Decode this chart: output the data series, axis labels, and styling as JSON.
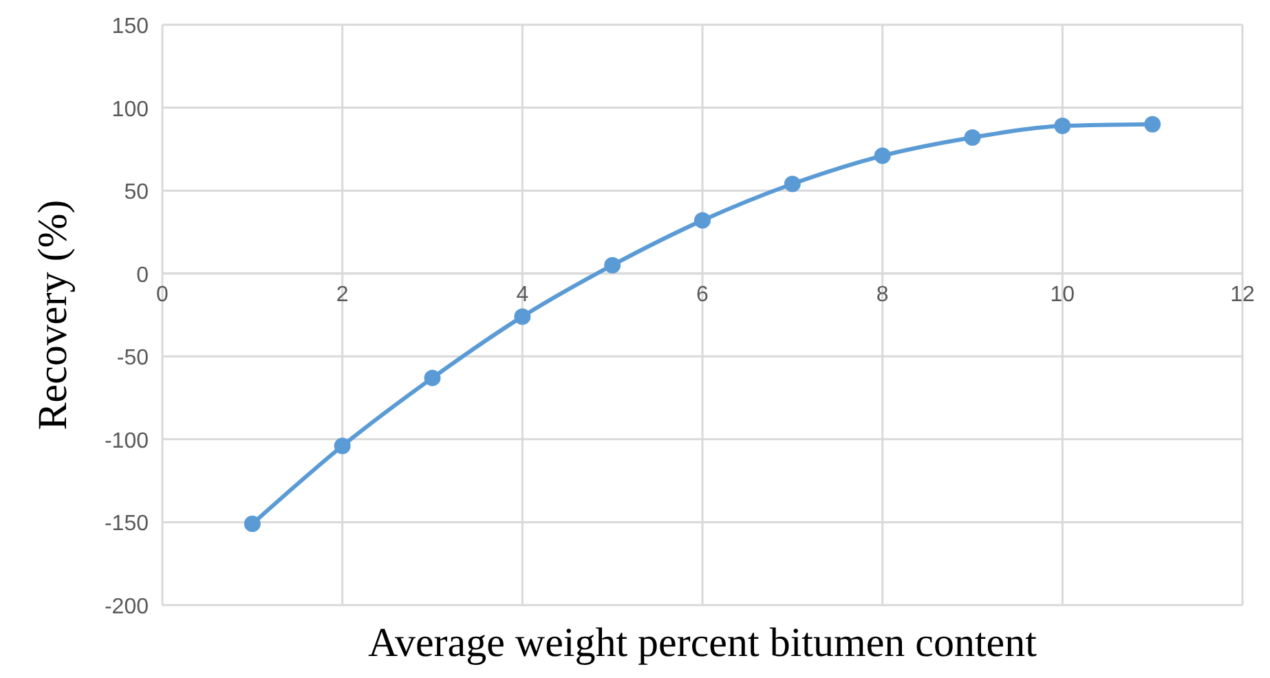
{
  "chart_data": {
    "type": "line",
    "xlabel": "Average weight percent bitumen content",
    "ylabel": "Recovery (%)",
    "x": [
      1,
      2,
      3,
      4,
      5,
      6,
      7,
      8,
      9,
      10,
      11
    ],
    "series": [
      {
        "color": "#5b9bd5",
        "values": [
          -151,
          -104,
          -63,
          -26,
          5,
          32,
          54,
          71,
          82,
          89,
          90
        ]
      }
    ],
    "xlim": [
      0,
      12
    ],
    "xticks": [
      0,
      2,
      4,
      6,
      8,
      10,
      12
    ],
    "ylim": [
      -200,
      150
    ],
    "yticks": [
      -200,
      -150,
      -100,
      -50,
      0,
      50,
      100,
      150
    ],
    "grid": true,
    "marker": "circle",
    "line_style": "solid"
  }
}
